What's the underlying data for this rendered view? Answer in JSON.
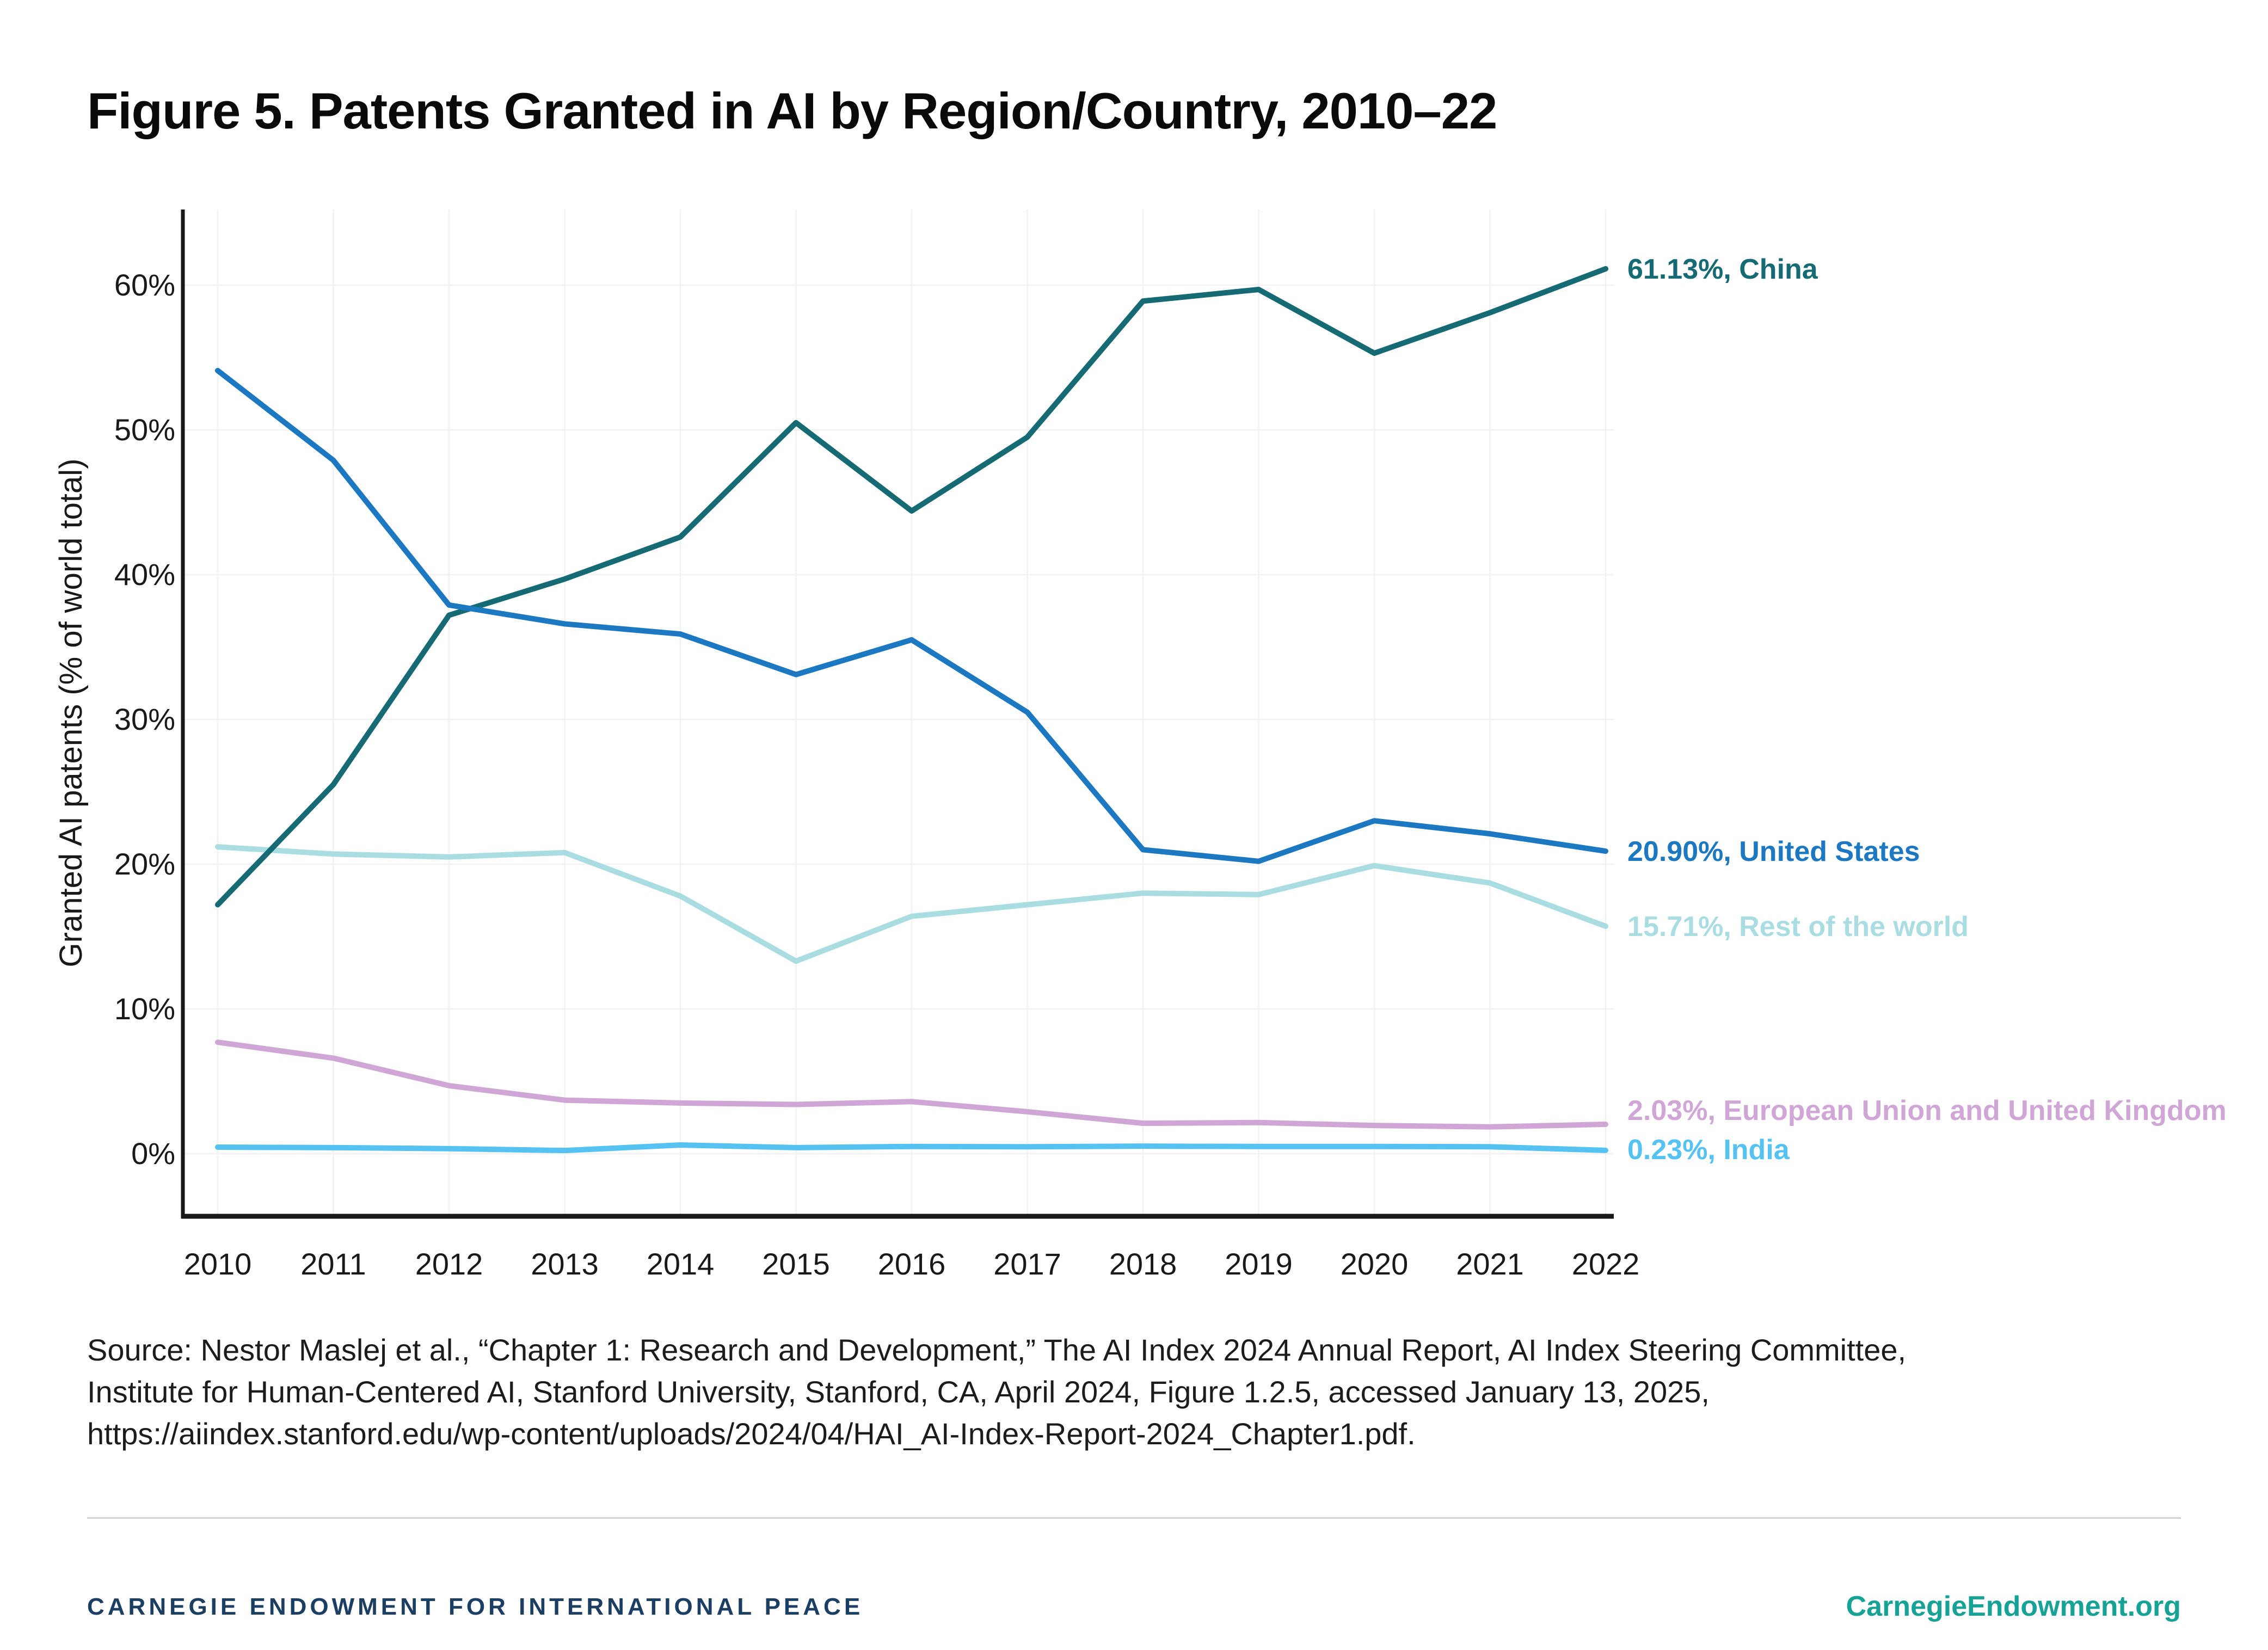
{
  "title": "Figure 5. Patents Granted in AI by Region/Country, 2010–22",
  "chart_data": {
    "type": "line",
    "x": [
      2010,
      2011,
      2012,
      2013,
      2014,
      2015,
      2016,
      2017,
      2018,
      2019,
      2020,
      2021,
      2022
    ],
    "xlabel": "",
    "ylabel": "Granted AI patents (% of world total)",
    "ylim": [
      0,
      60
    ],
    "grid": true,
    "legend_position": "right-end-labels",
    "yticks": [
      {
        "value": 0,
        "label": "0%"
      },
      {
        "value": 10,
        "label": "10%"
      },
      {
        "value": 20,
        "label": "20%"
      },
      {
        "value": 30,
        "label": "30%"
      },
      {
        "value": 40,
        "label": "40%"
      },
      {
        "value": 50,
        "label": "50%"
      },
      {
        "value": 60,
        "label": "60%"
      }
    ],
    "series": [
      {
        "id": "rest-of-world",
        "name": "Rest of the world",
        "color": "#a9dde2",
        "end_label": "15.71%, Rest of the world",
        "label_dy": 0,
        "values": [
          21.2,
          20.7,
          20.5,
          20.8,
          17.8,
          13.3,
          16.4,
          17.2,
          18.0,
          17.9,
          19.9,
          18.7,
          15.71
        ]
      },
      {
        "id": "eu-uk",
        "name": "European Union and United Kingdom",
        "color": "#cfa6d6",
        "end_label": "2.03%, European Union and United Kingdom",
        "label_dy": -26,
        "values": [
          7.7,
          6.6,
          4.7,
          3.7,
          3.5,
          3.4,
          3.6,
          2.9,
          2.1,
          2.15,
          1.95,
          1.85,
          2.03
        ]
      },
      {
        "id": "india",
        "name": "India",
        "color": "#55c2f2",
        "end_label": "0.23%, India",
        "label_dy": -2,
        "values": [
          0.45,
          0.42,
          0.35,
          0.22,
          0.6,
          0.42,
          0.5,
          0.48,
          0.52,
          0.5,
          0.5,
          0.48,
          0.23
        ]
      },
      {
        "id": "china",
        "name": "China",
        "color": "#156a73",
        "end_label": "61.13%, China",
        "label_dy": 0,
        "values": [
          17.2,
          25.5,
          37.2,
          39.7,
          42.6,
          50.5,
          44.4,
          49.5,
          58.9,
          59.7,
          55.3,
          58.1,
          61.13
        ]
      },
      {
        "id": "united-states",
        "name": "United States",
        "color": "#1d78c2",
        "end_label": "20.90%, United States",
        "label_dy": 0,
        "values": [
          54.1,
          47.9,
          37.9,
          36.6,
          35.9,
          33.1,
          35.5,
          30.5,
          21.0,
          20.2,
          23.0,
          22.1,
          20.9
        ]
      }
    ]
  },
  "source": {
    "lines": [
      "Source: Nestor Maslej et al., “Chapter 1: Research and Development,” The AI Index 2024 Annual Report, AI Index Steering Committee,",
      "Institute for Human-Centered AI, Stanford University, Stanford, CA, April 2024, Figure 1.2.5, accessed January 13, 2025,",
      "https://aiindex.stanford.edu/wp-content/uploads/2024/04/HAI_AI-Index-Report-2024_Chapter1.pdf."
    ]
  },
  "footer": {
    "left": "CARNEGIE ENDOWMENT FOR INTERNATIONAL PEACE",
    "right": "CarnegieEndowment.org",
    "navy": "#1c3e63",
    "teal": "#16a294"
  },
  "colors": {
    "axis": "#171717",
    "tick_text": "#191919",
    "gridline": "#f3f3f4",
    "divider": "#d4d4d4"
  }
}
